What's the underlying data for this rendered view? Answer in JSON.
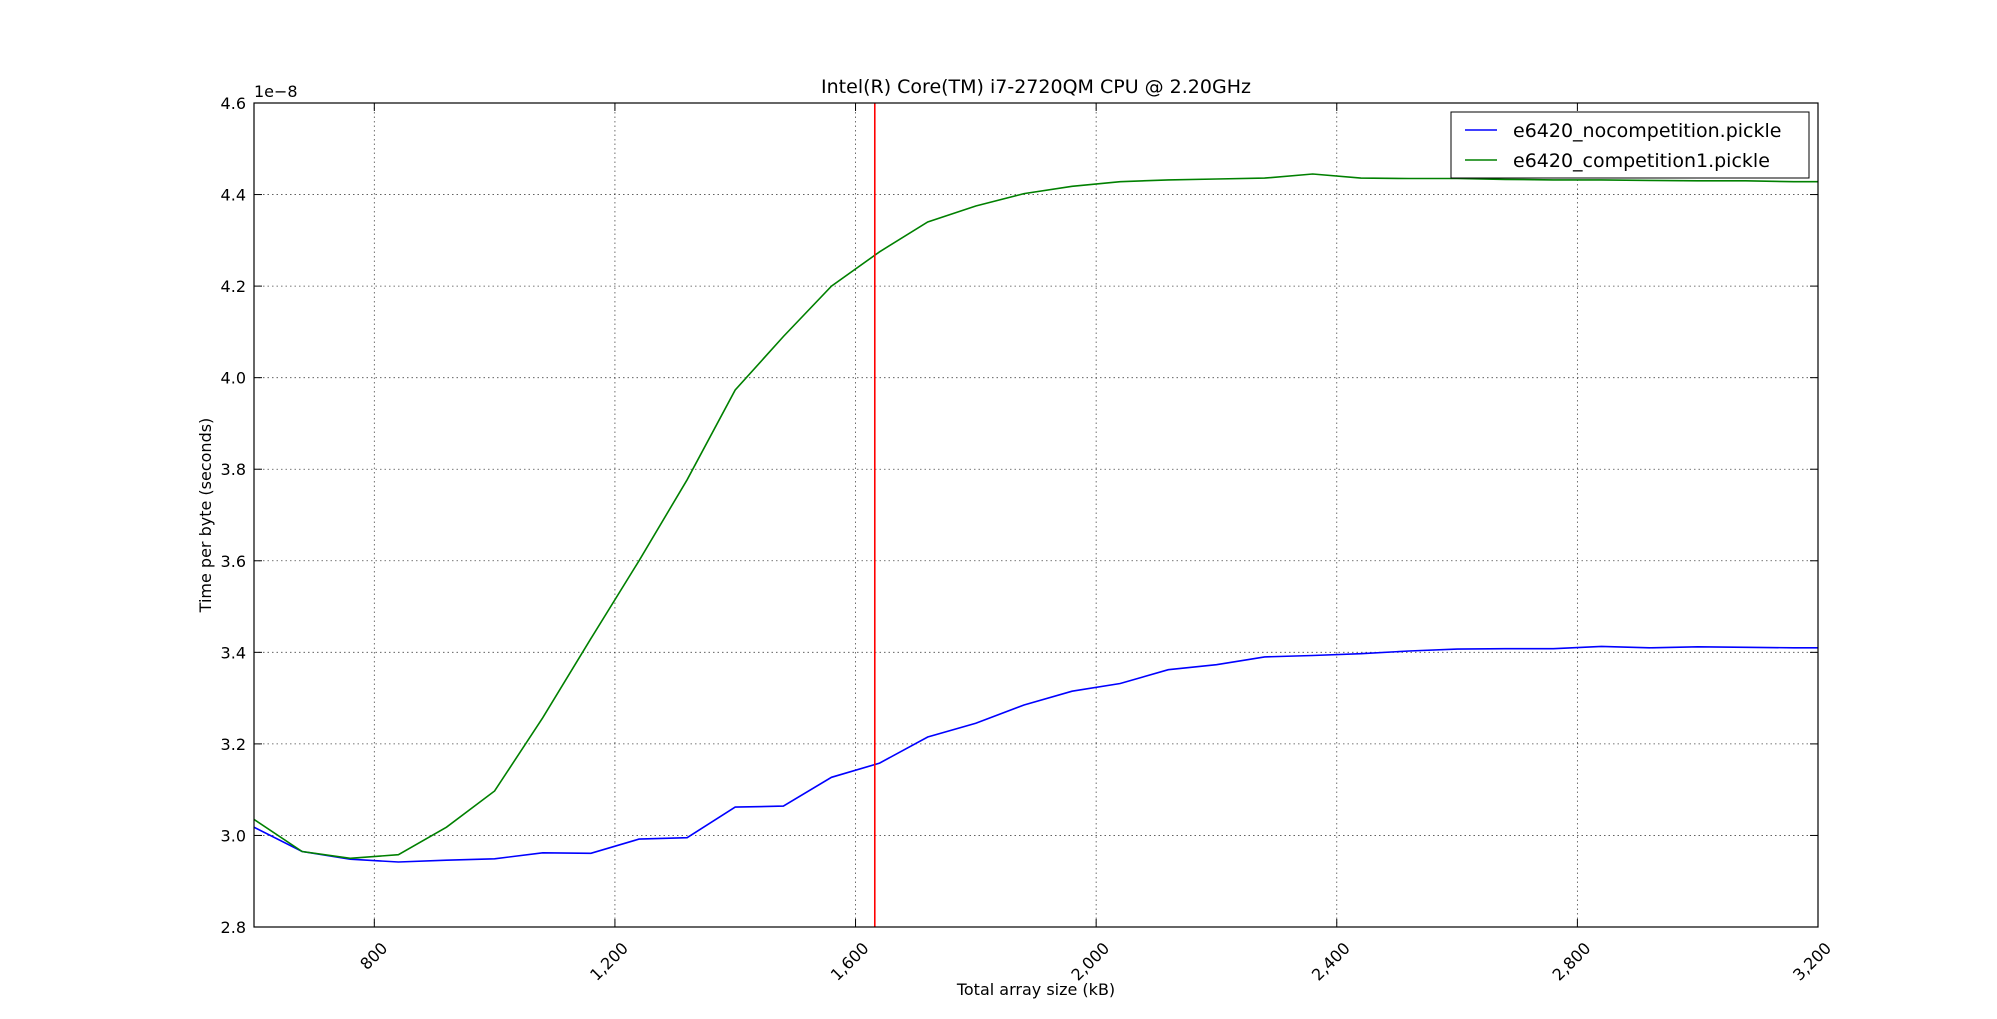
{
  "chart_data": {
    "type": "line",
    "title": "Intel(R) Core(TM) i7-2720QM CPU @ 2.20GHz",
    "xlabel": "Total array size (kB)",
    "ylabel": "Time per byte (seconds)",
    "y_offset_label": "1e−8",
    "xlim": [
      600,
      3200
    ],
    "ylim": [
      2.8,
      4.6
    ],
    "x_ticks": [
      800,
      1200,
      1600,
      2000,
      2400,
      2800,
      3200
    ],
    "x_tick_labels": [
      "800",
      "1,200",
      "1,600",
      "2,000",
      "2,400",
      "2,800",
      "3,200"
    ],
    "y_ticks": [
      2.8,
      3.0,
      3.2,
      3.4,
      3.6,
      3.8,
      4.0,
      4.2,
      4.4,
      4.6
    ],
    "y_tick_labels": [
      "2.8",
      "3.0",
      "3.2",
      "3.4",
      "3.6",
      "3.8",
      "4.0",
      "4.2",
      "4.4",
      "4.6"
    ],
    "grid": true,
    "legend_position": "top-right",
    "vertical_marker": {
      "x": 1632,
      "color": "#ff0000"
    },
    "series": [
      {
        "name": "e6420_nocompetition.pickle",
        "color": "#0000ff",
        "x": [
          600,
          680,
          760,
          840,
          920,
          1000,
          1080,
          1160,
          1240,
          1320,
          1400,
          1480,
          1560,
          1640,
          1720,
          1800,
          1880,
          1960,
          2040,
          2120,
          2200,
          2280,
          2360,
          2440,
          2520,
          2600,
          2680,
          2760,
          2840,
          2920,
          3000,
          3080,
          3160,
          3200
        ],
        "y": [
          3.018,
          2.965,
          2.948,
          2.942,
          2.946,
          2.949,
          2.962,
          2.961,
          2.992,
          2.995,
          3.062,
          3.064,
          3.127,
          3.158,
          3.215,
          3.245,
          3.285,
          3.315,
          3.332,
          3.362,
          3.373,
          3.39,
          3.393,
          3.397,
          3.403,
          3.407,
          3.408,
          3.408,
          3.413,
          3.41,
          3.412,
          3.411,
          3.41,
          3.41
        ]
      },
      {
        "name": "e6420_competition1.pickle",
        "color": "#008000",
        "x": [
          600,
          680,
          760,
          840,
          920,
          1000,
          1080,
          1160,
          1240,
          1320,
          1400,
          1480,
          1560,
          1640,
          1720,
          1800,
          1880,
          1960,
          2040,
          2120,
          2200,
          2280,
          2360,
          2440,
          2520,
          2600,
          2680,
          2760,
          2840,
          2920,
          3000,
          3080,
          3160,
          3200
        ],
        "y": [
          3.035,
          2.965,
          2.95,
          2.958,
          3.018,
          3.097,
          3.257,
          3.43,
          3.6,
          3.777,
          3.973,
          4.09,
          4.2,
          4.275,
          4.34,
          4.375,
          4.402,
          4.418,
          4.428,
          4.432,
          4.434,
          4.436,
          4.445,
          4.436,
          4.435,
          4.435,
          4.433,
          4.432,
          4.432,
          4.431,
          4.43,
          4.43,
          4.428,
          4.428
        ]
      }
    ]
  }
}
